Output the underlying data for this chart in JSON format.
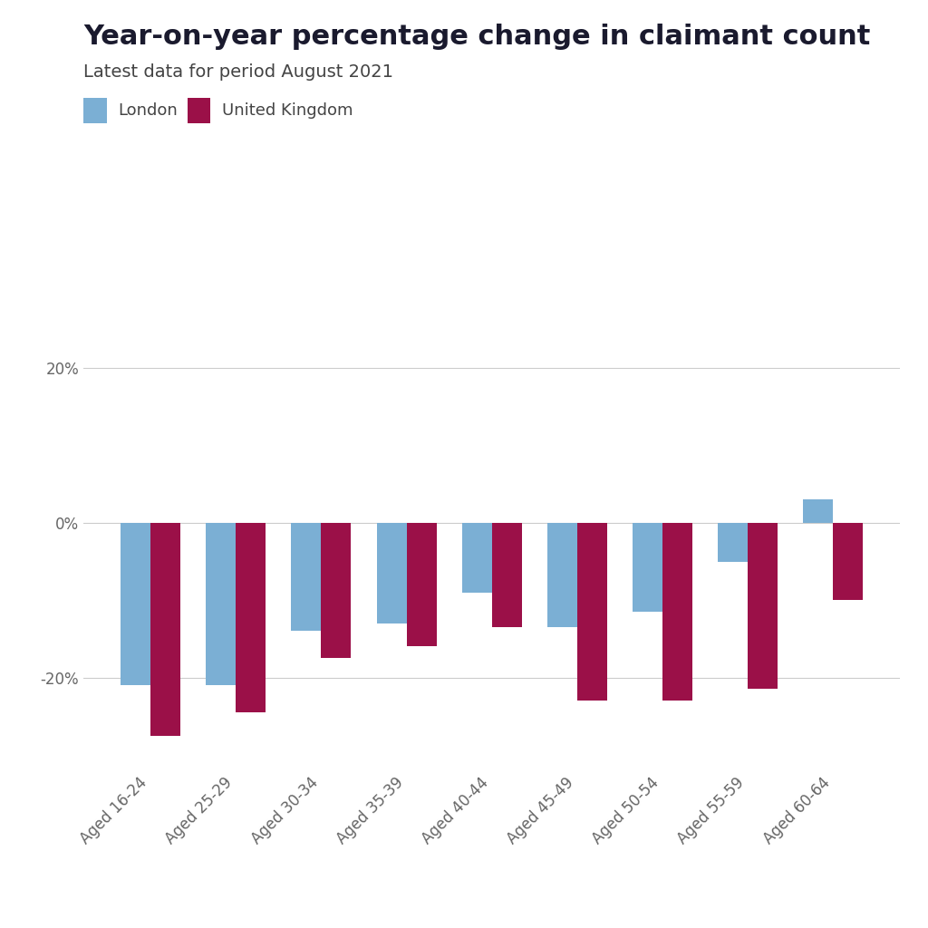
{
  "title": "Year-on-year percentage change in claimant count",
  "subtitle": "Latest data for period August 2021",
  "categories": [
    "Aged 16-24",
    "Aged 25-29",
    "Aged 30-34",
    "Aged 35-39",
    "Aged 40-44",
    "Aged 45-49",
    "Aged 50-54",
    "Aged 55-59",
    "Aged 60-64"
  ],
  "london_values": [
    -21.0,
    -21.0,
    -14.0,
    -13.0,
    -9.0,
    -13.5,
    -11.5,
    -5.0,
    3.0
  ],
  "uk_values": [
    -27.5,
    -24.5,
    -17.5,
    -16.0,
    -13.5,
    -23.0,
    -23.0,
    -21.5,
    -10.0
  ],
  "london_color": "#7BAFD4",
  "uk_color": "#9B1048",
  "background_color": "#FFFFFF",
  "title_fontsize": 22,
  "subtitle_fontsize": 14,
  "legend_fontsize": 13,
  "tick_fontsize": 12,
  "ytick_labels": [
    "20%",
    "0%",
    "-20%"
  ],
  "ytick_values": [
    20,
    0,
    -20
  ],
  "ylim": [
    -32,
    28
  ],
  "bar_width": 0.35,
  "title_color": "#1a1a2e",
  "subtitle_color": "#444444",
  "tick_color": "#666666",
  "grid_color": "#CCCCCC"
}
